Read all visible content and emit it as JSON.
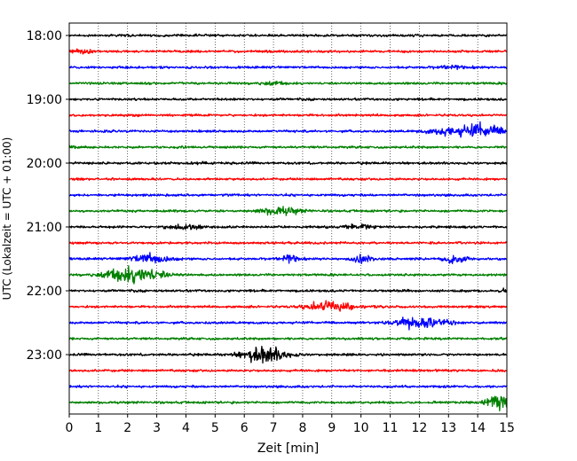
{
  "chart_data": {
    "type": "line",
    "title": "",
    "xlabel": "Zeit  [min]",
    "ylabel": "UTC (Lokalzeit = UTC + 01:00)",
    "xlim": [
      0,
      15
    ],
    "x_ticks": [
      0,
      1,
      2,
      3,
      4,
      5,
      6,
      7,
      8,
      9,
      10,
      11,
      12,
      13,
      14,
      15
    ],
    "x_tick_labels": [
      "0",
      "1",
      "2",
      "3",
      "4",
      "5",
      "6",
      "7",
      "8",
      "9",
      "10",
      "11",
      "12",
      "13",
      "14",
      "15"
    ],
    "y_ticks": [
      "18:00",
      "19:00",
      "20:00",
      "21:00",
      "22:00",
      "23:00"
    ],
    "grid": "vertical dotted",
    "trace_colors": [
      "#000000",
      "#ff0000",
      "#0000ff",
      "#008000"
    ],
    "series": [
      {
        "start": "18:00",
        "color": "#000000",
        "events": []
      },
      {
        "start": "18:15",
        "color": "#ff0000",
        "events": [
          {
            "t": 0.5,
            "amp": 0.4,
            "dur": 0.8
          }
        ]
      },
      {
        "start": "18:30",
        "color": "#0000ff",
        "events": [
          {
            "t": 13.2,
            "amp": 0.18,
            "dur": 1.5
          }
        ]
      },
      {
        "start": "18:45",
        "color": "#008000",
        "events": [
          {
            "t": 7.0,
            "amp": 0.25,
            "dur": 1.0
          }
        ]
      },
      {
        "start": "19:00",
        "color": "#000000",
        "events": []
      },
      {
        "start": "19:15",
        "color": "#ff0000",
        "events": []
      },
      {
        "start": "19:30",
        "color": "#0000ff",
        "events": [
          {
            "t": 12.9,
            "amp": 0.55,
            "dur": 1.5
          },
          {
            "t": 14.1,
            "amp": 1.1,
            "dur": 1.8
          }
        ]
      },
      {
        "start": "19:45",
        "color": "#008000",
        "events": [
          {
            "t": 0.0,
            "amp": 0.3,
            "dur": 0.6
          }
        ]
      },
      {
        "start": "20:00",
        "color": "#000000",
        "events": [
          {
            "t": 4.5,
            "amp": 0.22,
            "dur": 0.8
          }
        ]
      },
      {
        "start": "20:15",
        "color": "#ff0000",
        "events": []
      },
      {
        "start": "20:30",
        "color": "#0000ff",
        "events": []
      },
      {
        "start": "20:45",
        "color": "#008000",
        "events": [
          {
            "t": 7.2,
            "amp": 0.65,
            "dur": 1.6
          }
        ]
      },
      {
        "start": "21:00",
        "color": "#000000",
        "events": [
          {
            "t": 4.0,
            "amp": 0.32,
            "dur": 1.4
          },
          {
            "t": 9.9,
            "amp": 0.35,
            "dur": 1.2
          }
        ]
      },
      {
        "start": "21:15",
        "color": "#ff0000",
        "events": []
      },
      {
        "start": "21:30",
        "color": "#0000ff",
        "events": [
          {
            "t": 2.8,
            "amp": 0.75,
            "dur": 1.6
          },
          {
            "t": 7.6,
            "amp": 0.6,
            "dur": 0.7
          },
          {
            "t": 10.0,
            "amp": 0.6,
            "dur": 0.8
          },
          {
            "t": 13.2,
            "amp": 0.62,
            "dur": 1.0
          }
        ]
      },
      {
        "start": "21:45",
        "color": "#008000",
        "events": [
          {
            "t": 1.5,
            "amp": 0.3,
            "dur": 1.0
          },
          {
            "t": 2.3,
            "amp": 1.25,
            "dur": 2.2
          }
        ]
      },
      {
        "start": "22:00",
        "color": "#000000",
        "events": [
          {
            "t": 15.0,
            "amp": 0.3,
            "dur": 0.5
          }
        ]
      },
      {
        "start": "22:15",
        "color": "#ff0000",
        "events": [
          {
            "t": 8.9,
            "amp": 0.95,
            "dur": 1.8
          }
        ]
      },
      {
        "start": "22:30",
        "color": "#0000ff",
        "events": [
          {
            "t": 12.0,
            "amp": 1.1,
            "dur": 2.0
          }
        ]
      },
      {
        "start": "22:45",
        "color": "#008000",
        "events": []
      },
      {
        "start": "23:00",
        "color": "#000000",
        "events": [
          {
            "t": 6.7,
            "amp": 1.35,
            "dur": 1.8
          }
        ]
      },
      {
        "start": "23:15",
        "color": "#ff0000",
        "events": []
      },
      {
        "start": "23:30",
        "color": "#0000ff",
        "events": []
      },
      {
        "start": "23:45",
        "color": "#008000",
        "events": [
          {
            "t": 14.7,
            "amp": 1.2,
            "dur": 1.0
          }
        ]
      }
    ]
  }
}
